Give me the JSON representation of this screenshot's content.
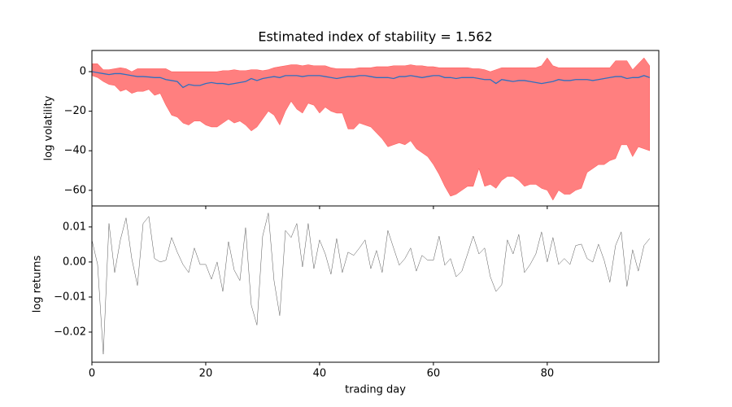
{
  "chart_data": [
    {
      "type": "line",
      "title": "Estimated index of stability = 1.562",
      "ylabel": "log volatility",
      "x": [
        0,
        1,
        2,
        3,
        4,
        5,
        6,
        7,
        8,
        9,
        10,
        11,
        12,
        13,
        14,
        15,
        16,
        17,
        18,
        19,
        20,
        21,
        22,
        23,
        24,
        25,
        26,
        27,
        28,
        29,
        30,
        31,
        32,
        33,
        34,
        35,
        36,
        37,
        38,
        39,
        40,
        41,
        42,
        43,
        44,
        45,
        46,
        47,
        48,
        49,
        50,
        51,
        52,
        53,
        54,
        55,
        56,
        57,
        58,
        59,
        60,
        61,
        62,
        63,
        64,
        65,
        66,
        67,
        68,
        69,
        70,
        71,
        72,
        73,
        74,
        75,
        76,
        77,
        78,
        79,
        80,
        81,
        82,
        83,
        84,
        85,
        86,
        87,
        88,
        89,
        90,
        91,
        92,
        93,
        94,
        95,
        96,
        97,
        98
      ],
      "band": {
        "color": "#ff0000",
        "opacity": 0.5,
        "upper": [
          4,
          4,
          1,
          1,
          1.5,
          2,
          1.5,
          0,
          1.5,
          1.5,
          1.5,
          1.5,
          1.5,
          1.5,
          0,
          0,
          0,
          0,
          0,
          0,
          0,
          0,
          0,
          0.5,
          0.5,
          1,
          0.5,
          0.5,
          1,
          1,
          0.5,
          1,
          2,
          2.5,
          3,
          3.5,
          3.5,
          3,
          3.5,
          3,
          3,
          3,
          2,
          1.5,
          1.5,
          1.5,
          1.5,
          2,
          2,
          2,
          2.5,
          2.5,
          2.5,
          3,
          3,
          3,
          3.5,
          3,
          3,
          2.5,
          2.5,
          2,
          2,
          2,
          2,
          2,
          2,
          1.5,
          1.5,
          1,
          0,
          1,
          2,
          2,
          2,
          2,
          2,
          2,
          2,
          3,
          7,
          3,
          2,
          2,
          2,
          2,
          2,
          2,
          2,
          2,
          2,
          2,
          5.5,
          5.5,
          5.5,
          1,
          4,
          7,
          3
        ],
        "lower": [
          -2,
          -3,
          -5,
          -6.5,
          -7,
          -10,
          -9,
          -11,
          -10,
          -10,
          -9,
          -12,
          -11,
          -17,
          -22,
          -23,
          -26,
          -27,
          -25,
          -25,
          -27,
          -28,
          -28,
          -26,
          -24,
          -26,
          -25,
          -27,
          -30,
          -28,
          -24,
          -20,
          -22,
          -27,
          -20,
          -15,
          -19,
          -21,
          -16,
          -17,
          -21,
          -18,
          -20,
          -21,
          -21,
          -29,
          -29,
          -26,
          -27,
          -28,
          -31,
          -34,
          -38,
          -37,
          -36,
          -37,
          -35,
          -39,
          -41,
          -43,
          -47,
          -52,
          -58,
          -63,
          -62,
          -60,
          -58,
          -58,
          -49,
          -58,
          -57,
          -59,
          -55,
          -53,
          -53,
          -55,
          -58,
          -57,
          -57,
          -59,
          -60,
          -65,
          -60,
          -62,
          -62,
          -60,
          -59,
          -51,
          -49,
          -47,
          -47,
          -45,
          -44,
          -37,
          -37,
          -43,
          -38,
          -39,
          -40
        ]
      },
      "series": [
        {
          "color": "#2f6fbf",
          "values": [
            0,
            -0.5,
            -1,
            -1.5,
            -1,
            -1,
            -1.5,
            -2,
            -2.5,
            -2.5,
            -2.7,
            -3,
            -3,
            -4,
            -4.5,
            -5,
            -8,
            -6.5,
            -7,
            -7,
            -6,
            -5.5,
            -6,
            -6,
            -6.5,
            -6,
            -5.5,
            -5,
            -3.5,
            -4.5,
            -3.5,
            -3,
            -2.5,
            -3,
            -2,
            -2,
            -2,
            -2.5,
            -2,
            -2,
            -2,
            -2.5,
            -3,
            -3.5,
            -3,
            -2.5,
            -2.5,
            -2,
            -2,
            -2.5,
            -3,
            -3,
            -3,
            -3.5,
            -2.5,
            -2.5,
            -2,
            -2.5,
            -3,
            -2.5,
            -2,
            -2,
            -3,
            -3,
            -3.5,
            -3,
            -3,
            -3,
            -3.5,
            -4,
            -4,
            -6,
            -4,
            -4.5,
            -5,
            -4.5,
            -4.5,
            -5,
            -5.5,
            -6,
            -5.5,
            -5,
            -4,
            -4.5,
            -4.5,
            -4,
            -4,
            -4,
            -4.5,
            -4,
            -3.5,
            -3,
            -2.5,
            -2.5,
            -3.5,
            -3,
            -3,
            -2,
            -3
          ]
        }
      ],
      "xlim": [
        0,
        99.6
      ],
      "xticks": [
        0,
        20,
        40,
        60,
        80
      ],
      "ylim": [
        -67.9,
        10.7
      ],
      "yticks": [
        {
          "value": -60,
          "label": "−60"
        },
        {
          "value": -40,
          "label": "−40"
        },
        {
          "value": -20,
          "label": "−20"
        },
        0
      ]
    },
    {
      "type": "line",
      "ylabel": "log returns",
      "xlabel": "trading day",
      "x": [
        0,
        1,
        2,
        3,
        4,
        5,
        6,
        7,
        8,
        9,
        10,
        11,
        12,
        13,
        14,
        15,
        16,
        17,
        18,
        19,
        20,
        21,
        22,
        23,
        24,
        25,
        26,
        27,
        28,
        29,
        30,
        31,
        32,
        33,
        34,
        35,
        36,
        37,
        38,
        39,
        40,
        41,
        42,
        43,
        44,
        45,
        46,
        47,
        48,
        49,
        50,
        51,
        52,
        53,
        54,
        55,
        56,
        57,
        58,
        59,
        60,
        61,
        62,
        63,
        64,
        65,
        66,
        67,
        68,
        69,
        70,
        71,
        72,
        73,
        74,
        75,
        76,
        77,
        78,
        79,
        80,
        81,
        82,
        83,
        84,
        85,
        86,
        87,
        88,
        89,
        90,
        91,
        92,
        93,
        94,
        95,
        96,
        97,
        98
      ],
      "series": [
        {
          "color": "#555555",
          "values": [
            0.0063,
            -0.0007,
            -0.0263,
            0.011,
            -0.003,
            0.0063,
            0.0126,
            0.001,
            -0.0067,
            0.011,
            0.013,
            0.001,
            0,
            0.0005,
            0.007,
            0.0028,
            -0.0007,
            -0.003,
            0.004,
            -0.0007,
            -0.0007,
            -0.0049,
            0,
            -0.0084,
            0.0058,
            -0.0023,
            -0.0053,
            0.0098,
            -0.0123,
            -0.018,
            0.0074,
            0.014,
            -0.0053,
            -0.0153,
            0.009,
            0.007,
            0.011,
            -0.0014,
            0.011,
            -0.0019,
            0.0063,
            0.0023,
            -0.0035,
            0.0067,
            -0.003,
            0.0028,
            0.0019,
            0.004,
            0.0063,
            -0.0019,
            0.0033,
            -0.003,
            0.009,
            0.004,
            -0.0009,
            0.001,
            0.004,
            -0.0026,
            0.0019,
            0.0005,
            0.0005,
            0.0074,
            -0.0009,
            0.001,
            -0.0042,
            -0.0026,
            0.0023,
            0.0074,
            0.0023,
            0.004,
            -0.0042,
            -0.0084,
            -0.0065,
            0.0063,
            0.0023,
            0.0079,
            -0.003,
            -0.0007,
            0.0023,
            0.0086,
            0,
            0.007,
            -0.0007,
            0.001,
            -0.0007,
            0.0047,
            0.0051,
            0.001,
            0,
            0.0051,
            0.0005,
            -0.0058,
            0.0047,
            0.0086,
            -0.007,
            0.0035,
            -0.0026,
            0.0047,
            0.0067
          ]
        }
      ],
      "xlim": [
        0,
        99.6
      ],
      "xticks": [
        0,
        20,
        40,
        60,
        80
      ],
      "ylim": [
        -0.0286,
        0.016
      ],
      "yticks": [
        {
          "value": -0.02,
          "label": "−0.02"
        },
        {
          "value": -0.01,
          "label": "−0.01"
        },
        {
          "value": 0,
          "label": "0.00"
        },
        0.01
      ]
    }
  ]
}
